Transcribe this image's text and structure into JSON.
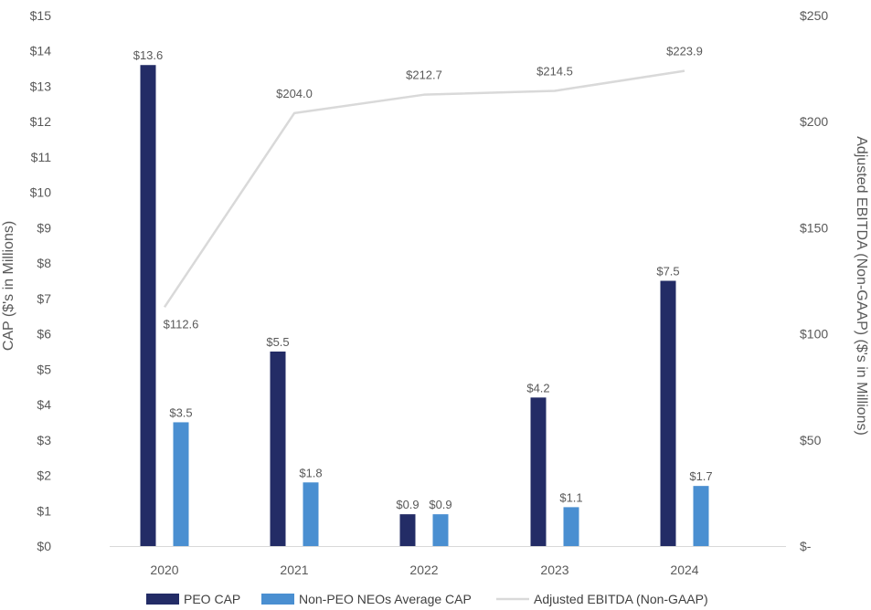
{
  "chart_data": {
    "type": "bar",
    "categories": [
      "2020",
      "2021",
      "2022",
      "2023",
      "2024"
    ],
    "series": [
      {
        "name": "PEO CAP",
        "type": "bar",
        "axis": "left",
        "color": "#232C66",
        "values": [
          13.6,
          5.5,
          0.9,
          4.2,
          7.5
        ],
        "labels": [
          "$13.6",
          "$5.5",
          "$0.9",
          "$4.2",
          "$7.5"
        ]
      },
      {
        "name": "Non-PEO NEOs Average CAP",
        "type": "bar",
        "axis": "left",
        "color": "#4A8FD1",
        "values": [
          3.5,
          1.8,
          0.9,
          1.1,
          1.7
        ],
        "labels": [
          "$3.5",
          "$1.8",
          "$0.9",
          "$1.1",
          "$1.7"
        ]
      },
      {
        "name": "Adjusted EBITDA (Non-GAAP)",
        "type": "line",
        "axis": "right",
        "color": "#D9D9D9",
        "values": [
          112.6,
          204.0,
          212.7,
          214.5,
          223.9
        ],
        "labels": [
          "$112.6",
          "$204.0",
          "$212.7",
          "$214.5",
          "$223.9"
        ]
      }
    ],
    "left_axis": {
      "title": "CAP ($'s in Millions)",
      "ylim": [
        0,
        15
      ],
      "ticks": [
        0,
        1,
        2,
        3,
        4,
        5,
        6,
        7,
        8,
        9,
        10,
        11,
        12,
        13,
        14,
        15
      ],
      "tick_labels": [
        "$0",
        "$1",
        "$2",
        "$3",
        "$4",
        "$5",
        "$6",
        "$7",
        "$8",
        "$9",
        "$10",
        "$11",
        "$12",
        "$13",
        "$14",
        "$15"
      ]
    },
    "right_axis": {
      "title": "Adjusted EBITDA (Non-GAAP) ($'s in Millions)",
      "ylim": [
        0,
        250
      ],
      "ticks": [
        0,
        50,
        100,
        150,
        200,
        250
      ],
      "tick_labels": [
        "$-",
        "$50",
        "$100",
        "$150",
        "$200",
        "$250"
      ]
    },
    "grid": false,
    "legend": "bottom"
  }
}
